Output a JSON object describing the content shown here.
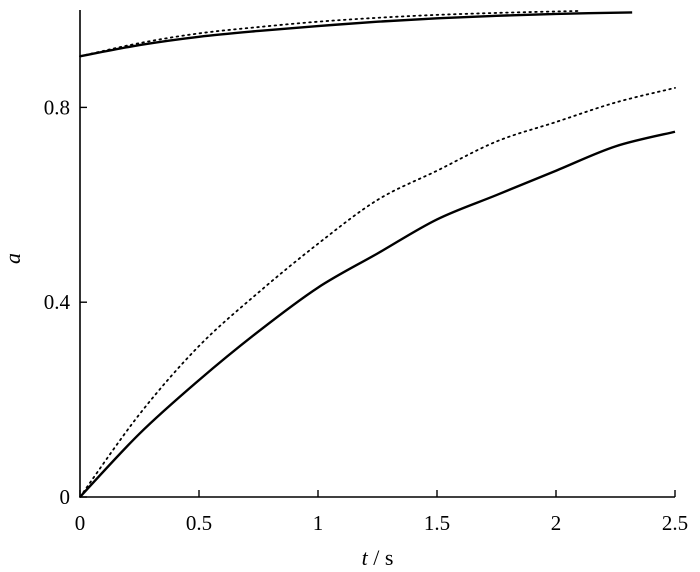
{
  "chart_data": {
    "type": "line",
    "xlabel_var": "t",
    "xlabel_sep": " / ",
    "xlabel_unit": "s",
    "ylabel": "a",
    "xlim": [
      0,
      2.5
    ],
    "ylim": [
      0,
      1.0
    ],
    "xticks": [
      {
        "value": 0,
        "label": "0"
      },
      {
        "value": 0.5,
        "label": "0.5"
      },
      {
        "value": 1,
        "label": "1"
      },
      {
        "value": 1.5,
        "label": "1.5"
      },
      {
        "value": 2,
        "label": "2"
      },
      {
        "value": 2.5,
        "label": "2.5"
      }
    ],
    "yticks": [
      {
        "value": 0,
        "label": "0"
      },
      {
        "value": 0.4,
        "label": "0.4"
      },
      {
        "value": 0.8,
        "label": "0.8"
      }
    ],
    "grid": false,
    "legend": false,
    "series": [
      {
        "style": "solid",
        "color": "#000000",
        "x": [
          0,
          0.25,
          0.5,
          0.75,
          1.0,
          1.25,
          1.5,
          1.75,
          2.0,
          2.25,
          2.5
        ],
        "y": [
          0,
          0.13,
          0.24,
          0.34,
          0.43,
          0.5,
          0.57,
          0.62,
          0.67,
          0.72,
          0.75
        ]
      },
      {
        "style": "dotted",
        "color": "#000000",
        "x": [
          0,
          0.25,
          0.5,
          0.75,
          1.0,
          1.25,
          1.5,
          1.75,
          2.0,
          2.25,
          2.5
        ],
        "y": [
          0,
          0.17,
          0.31,
          0.42,
          0.52,
          0.61,
          0.67,
          0.73,
          0.77,
          0.81,
          0.84
        ]
      },
      {
        "style": "solid",
        "color": "#000000",
        "x": [
          0,
          0.25,
          0.5,
          0.75,
          1.0,
          1.25,
          1.5,
          1.75,
          2.0,
          2.32
        ],
        "y": [
          0.905,
          0.928,
          0.945,
          0.957,
          0.967,
          0.976,
          0.983,
          0.988,
          0.992,
          0.995
        ]
      },
      {
        "style": "dotted",
        "color": "#000000",
        "x": [
          0,
          0.25,
          0.5,
          0.75,
          1.0,
          1.25,
          1.5,
          1.75,
          2.0,
          2.1
        ],
        "y": [
          0.905,
          0.932,
          0.952,
          0.965,
          0.976,
          0.984,
          0.99,
          0.994,
          0.997,
          0.998
        ]
      }
    ]
  }
}
